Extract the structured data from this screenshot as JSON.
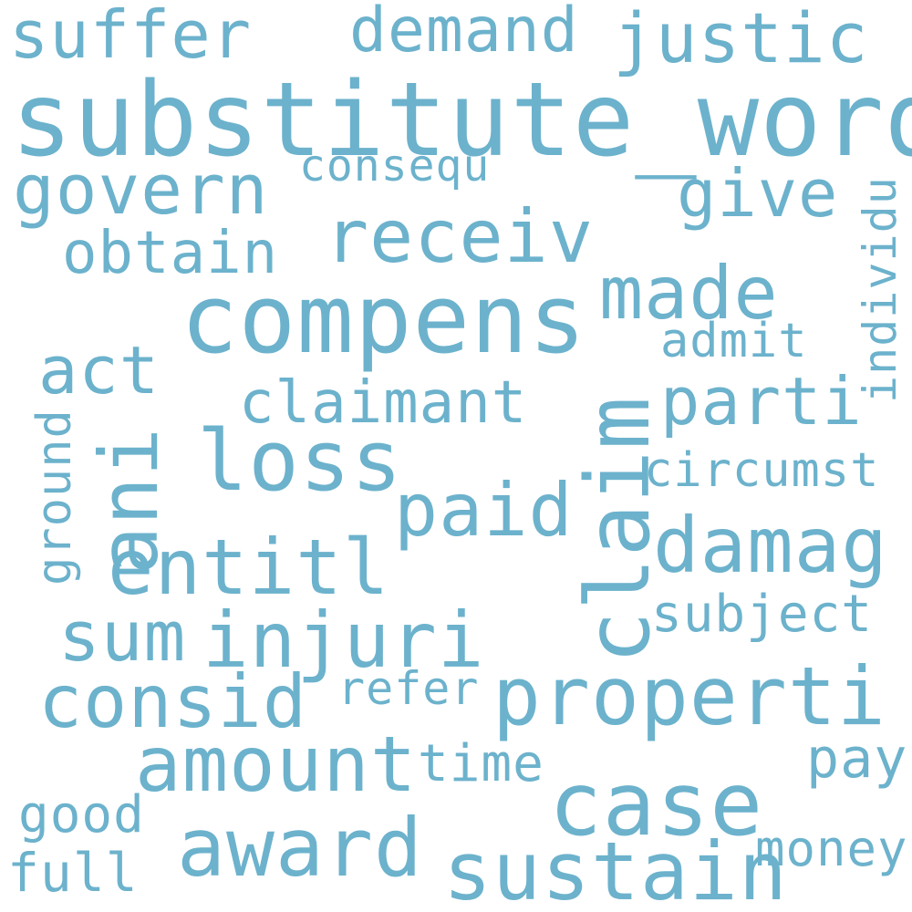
{
  "color": "#6cb2cc",
  "words": [
    "suffer",
    "demand",
    "justic",
    "substitute_word",
    "consequ",
    "govern",
    "give",
    "receiv",
    "obtain",
    "individu",
    "compens",
    "made",
    "admit",
    "act",
    "claimant",
    "parti",
    "claim",
    "loss",
    "ani",
    "ground",
    "paid",
    "circumst",
    "damag",
    "entitl",
    "subject",
    "sum",
    "injuri",
    "consid",
    "refer",
    "properti",
    "amount",
    "time",
    "pay",
    "case",
    "good",
    "award",
    "money",
    "full",
    "sustain"
  ]
}
